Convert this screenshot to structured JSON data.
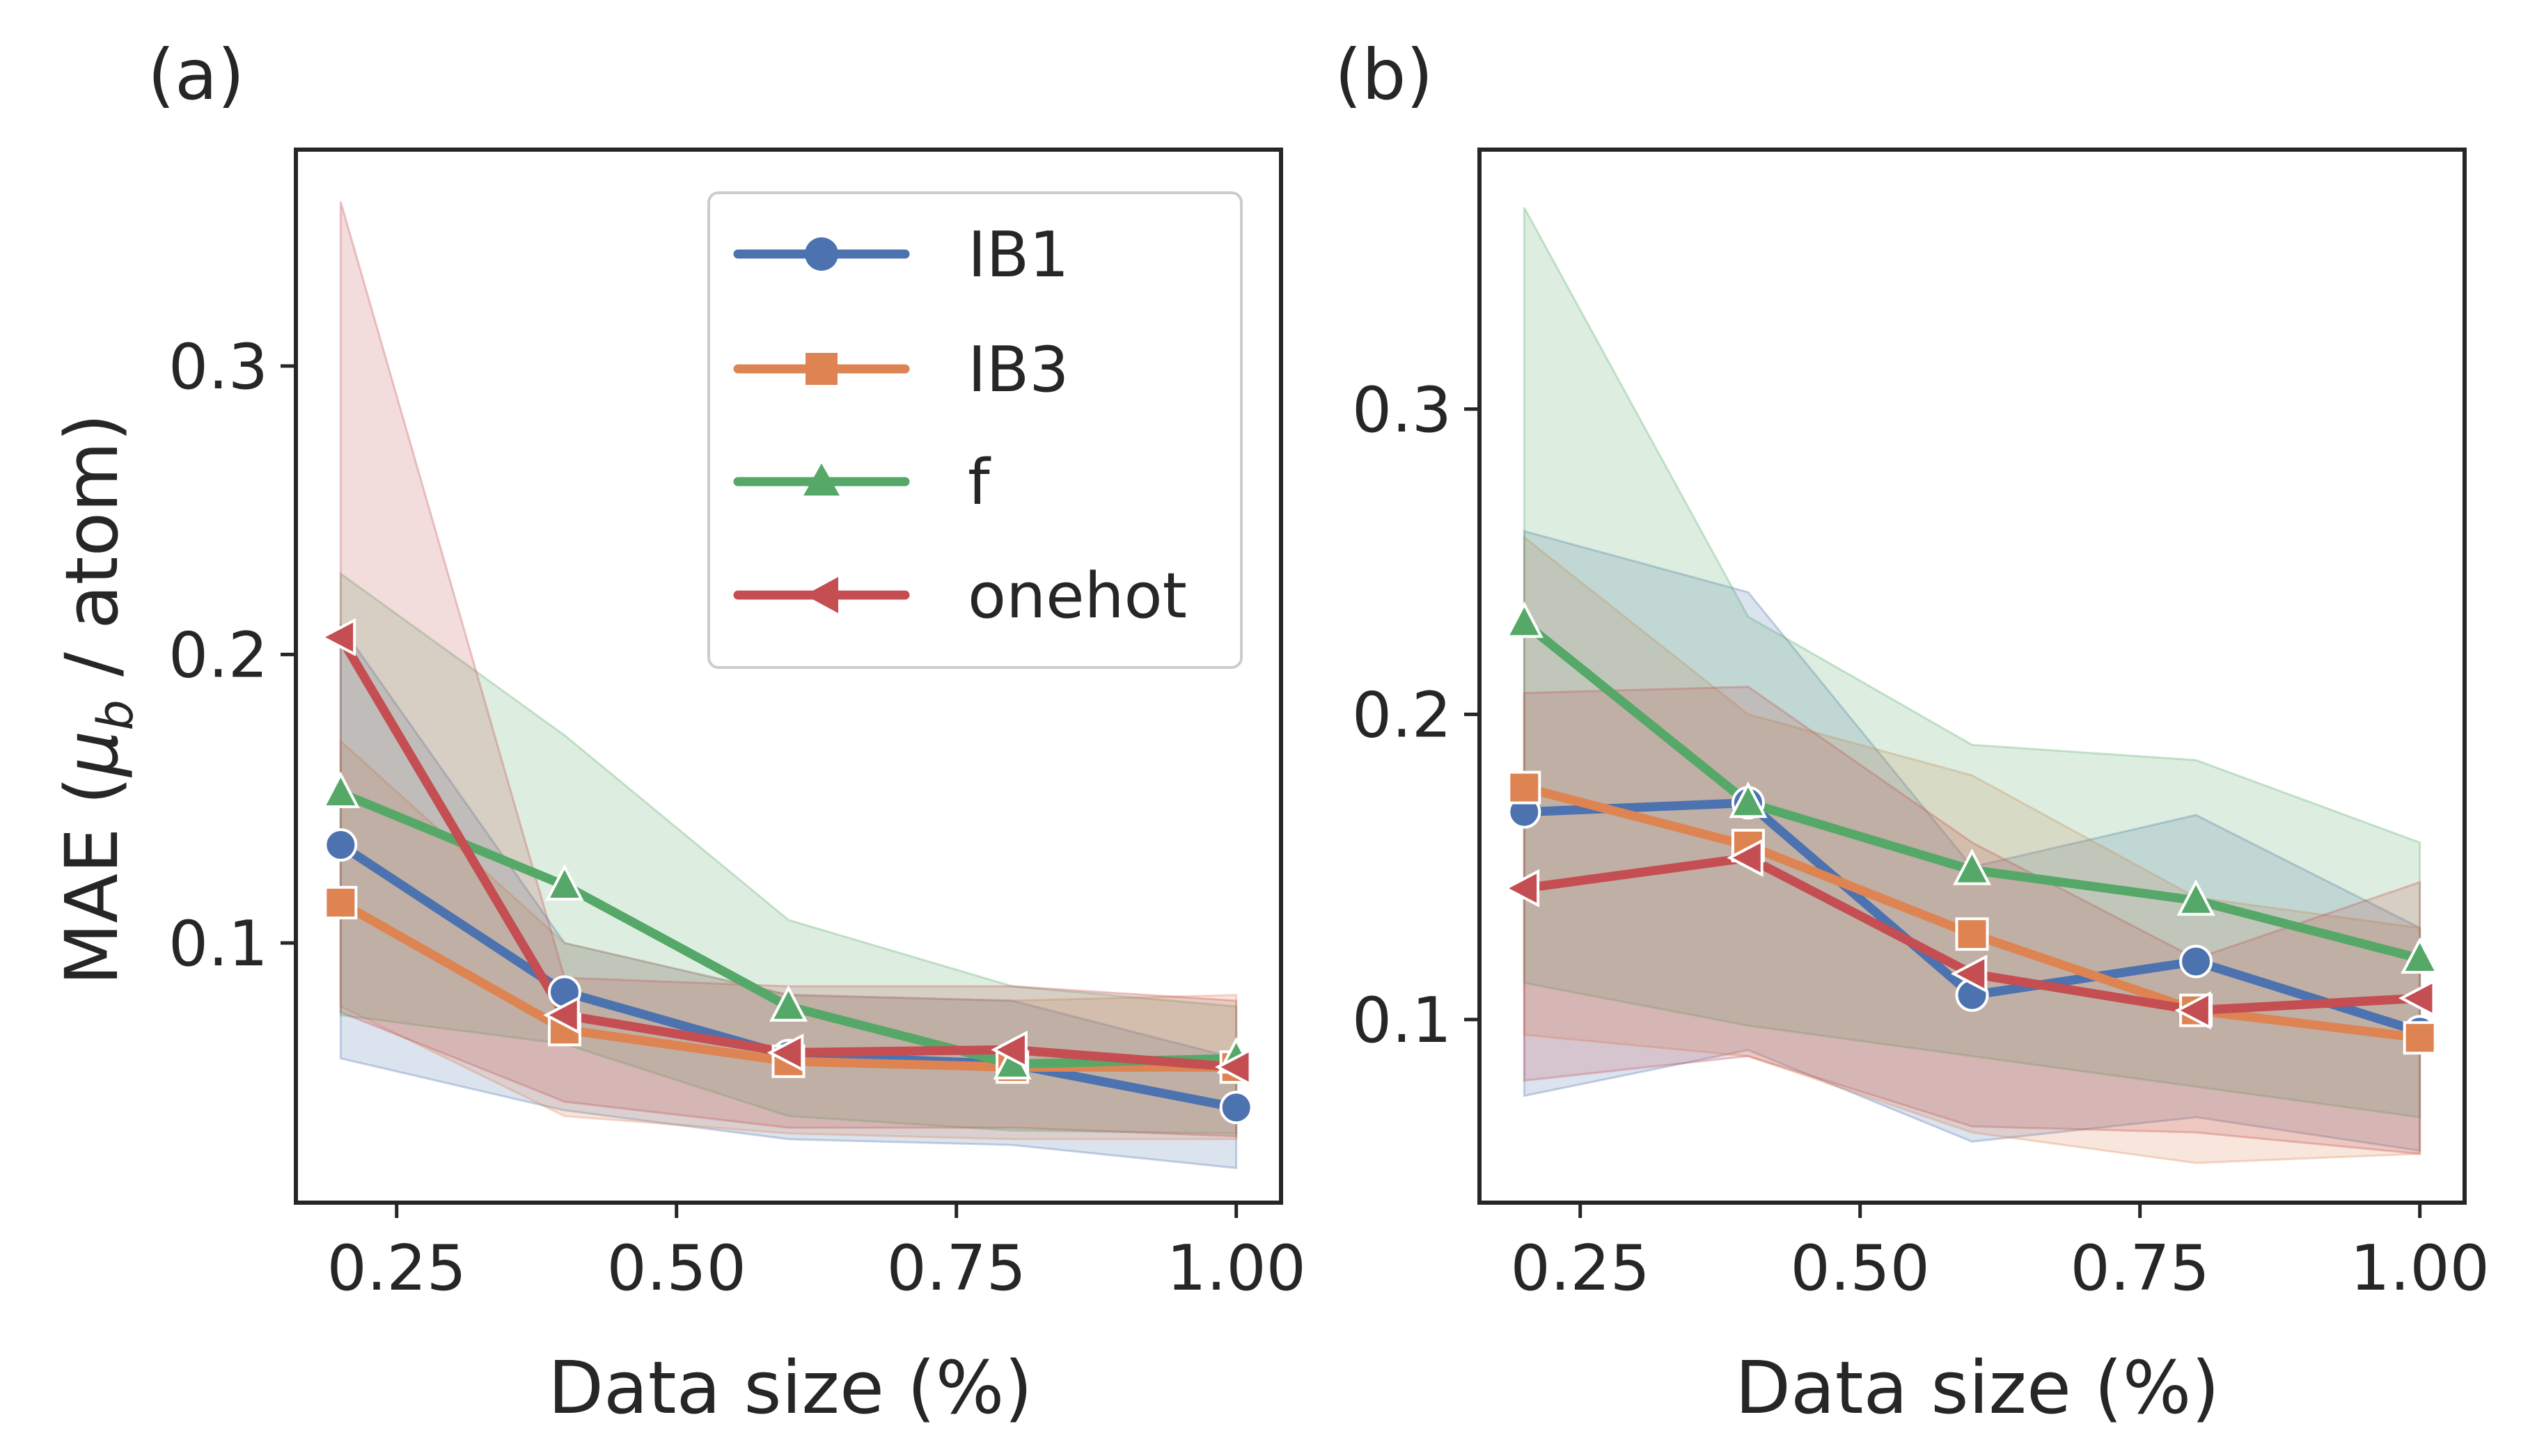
{
  "colors": {
    "IB1": "#4c72b0",
    "IB3": "#dd8452",
    "f": "#55a868",
    "onehot": "#c44e52",
    "axis": "#262626"
  },
  "legend": {
    "IB1": "IB1",
    "IB3": "IB3",
    "f": "f",
    "onehot": "onehot"
  },
  "chart_data": [
    {
      "type": "line",
      "panel_label": "(a)",
      "xlabel": "Data size (%)",
      "ylabel": "MAE (μb / atom)",
      "xlim": [
        0.16,
        1.04
      ],
      "ylim": [
        0.01,
        0.375
      ],
      "xticks": [
        0.25,
        0.5,
        0.75,
        1.0
      ],
      "xtick_labels": [
        "0.25",
        "0.50",
        "0.75",
        "1.00"
      ],
      "yticks": [
        0.1,
        0.2,
        0.3
      ],
      "ytick_labels": [
        "0.1",
        "0.2",
        "0.3"
      ],
      "grid": false,
      "legend_position": "upper right",
      "x": [
        0.2,
        0.4,
        0.6,
        0.8,
        1.0
      ],
      "series": [
        {
          "name": "IB1",
          "marker": "circle",
          "values": [
            0.134,
            0.083,
            0.061,
            0.058,
            0.043
          ],
          "lower": [
            0.06,
            0.042,
            0.032,
            0.03,
            0.022
          ],
          "upper": [
            0.21,
            0.1,
            0.082,
            0.08,
            0.06
          ]
        },
        {
          "name": "IB3",
          "marker": "square",
          "values": [
            0.114,
            0.07,
            0.059,
            0.057,
            0.057
          ],
          "lower": [
            0.078,
            0.04,
            0.034,
            0.032,
            0.032
          ],
          "upper": [
            0.17,
            0.1,
            0.082,
            0.08,
            0.082
          ]
        },
        {
          "name": "f",
          "marker": "triangle-up",
          "values": [
            0.152,
            0.12,
            0.078,
            0.058,
            0.06
          ],
          "lower": [
            0.075,
            0.065,
            0.04,
            0.035,
            0.034
          ],
          "upper": [
            0.228,
            0.172,
            0.108,
            0.085,
            0.078
          ]
        },
        {
          "name": "onehot",
          "marker": "triangle-left",
          "values": [
            0.206,
            0.075,
            0.062,
            0.063,
            0.057
          ],
          "lower": [
            0.076,
            0.045,
            0.036,
            0.036,
            0.033
          ],
          "upper": [
            0.357,
            0.088,
            0.085,
            0.085,
            0.08
          ]
        }
      ]
    },
    {
      "type": "line",
      "panel_label": "(b)",
      "xlabel": "Data size (%)",
      "ylabel": "",
      "xlim": [
        0.16,
        1.04
      ],
      "ylim": [
        0.04,
        0.385
      ],
      "xticks": [
        0.25,
        0.5,
        0.75,
        1.0
      ],
      "xtick_labels": [
        "0.25",
        "0.50",
        "0.75",
        "1.00"
      ],
      "yticks": [
        0.1,
        0.2,
        0.3
      ],
      "ytick_labels": [
        "0.1",
        "0.2",
        "0.3"
      ],
      "grid": false,
      "legend_position": "none",
      "x": [
        0.2,
        0.4,
        0.6,
        0.8,
        1.0
      ],
      "series": [
        {
          "name": "IB1",
          "marker": "circle",
          "values": [
            0.168,
            0.171,
            0.108,
            0.119,
            0.096
          ],
          "lower": [
            0.075,
            0.09,
            0.06,
            0.068,
            0.057
          ],
          "upper": [
            0.26,
            0.24,
            0.15,
            0.167,
            0.13
          ]
        },
        {
          "name": "IB3",
          "marker": "square",
          "values": [
            0.176,
            0.157,
            0.128,
            0.103,
            0.094
          ],
          "lower": [
            0.095,
            0.088,
            0.063,
            0.053,
            0.056
          ],
          "upper": [
            0.258,
            0.2,
            0.18,
            0.14,
            0.13
          ]
        },
        {
          "name": "f",
          "marker": "triangle-up",
          "values": [
            0.23,
            0.171,
            0.149,
            0.139,
            0.12
          ],
          "lower": [
            0.112,
            0.098,
            0.088,
            0.078,
            0.068
          ],
          "upper": [
            0.366,
            0.232,
            0.19,
            0.185,
            0.158
          ]
        },
        {
          "name": "onehot",
          "marker": "triangle-left",
          "values": [
            0.143,
            0.153,
            0.115,
            0.103,
            0.107
          ],
          "lower": [
            0.08,
            0.088,
            0.065,
            0.063,
            0.056
          ],
          "upper": [
            0.207,
            0.209,
            0.158,
            0.12,
            0.145
          ]
        }
      ]
    }
  ]
}
